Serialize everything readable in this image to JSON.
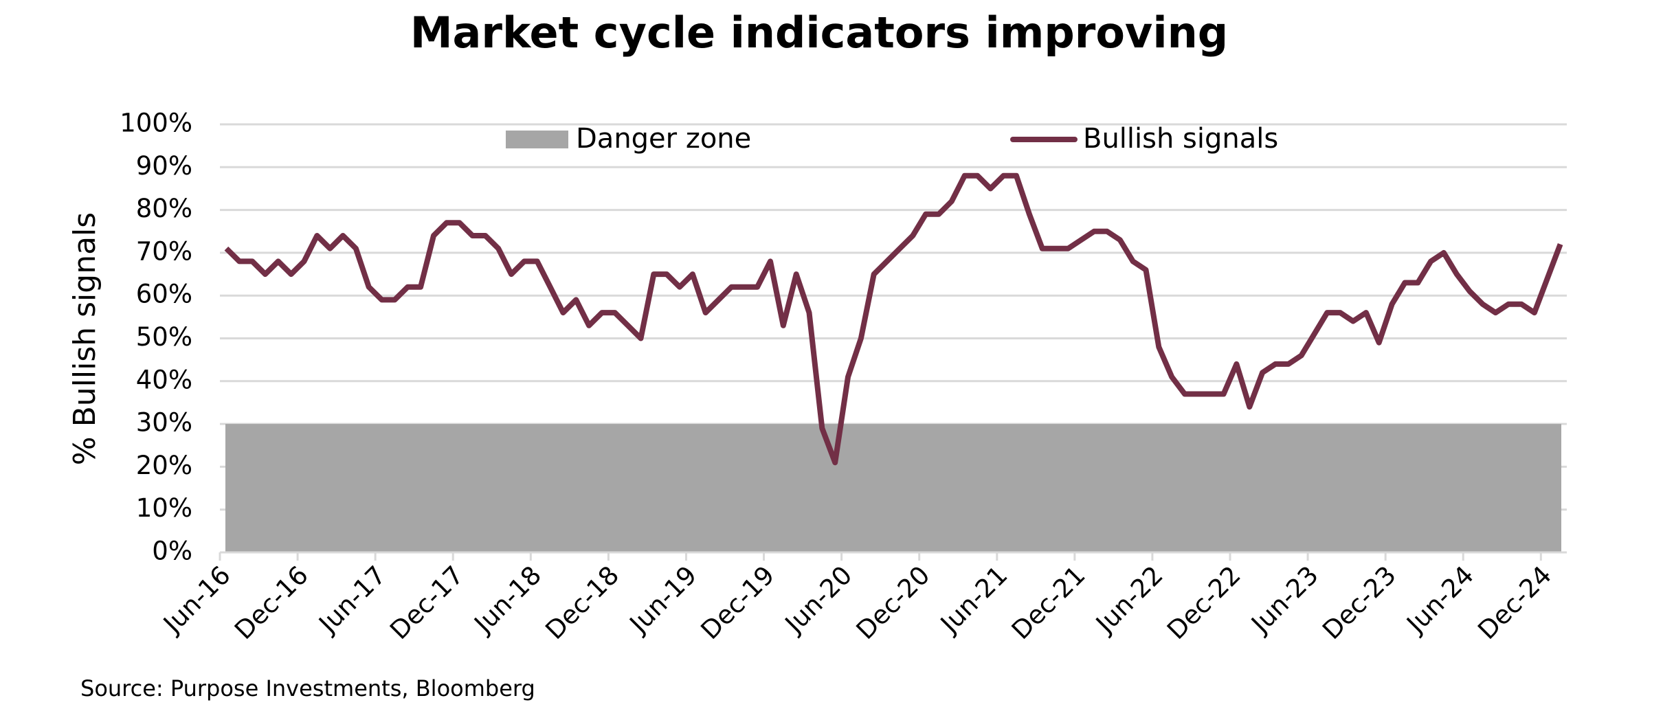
{
  "chart_data": {
    "type": "line",
    "title": "Market cycle indicators improving",
    "y_label": "% Bullish signals",
    "source": "Source: Purpose Investments, Bloomberg",
    "categories": [
      "Jun-16",
      null,
      null,
      null,
      null,
      null,
      "Dec-16",
      null,
      null,
      null,
      null,
      null,
      "Jun-17",
      null,
      null,
      null,
      null,
      null,
      "Dec-17",
      null,
      null,
      null,
      null,
      null,
      "Jun-18",
      null,
      null,
      null,
      null,
      null,
      "Dec-18",
      null,
      null,
      null,
      null,
      null,
      "Jun-19",
      null,
      null,
      null,
      null,
      null,
      "Dec-19",
      null,
      null,
      null,
      null,
      null,
      "Jun-20",
      null,
      null,
      null,
      null,
      null,
      "Dec-20",
      null,
      null,
      null,
      null,
      null,
      "Jun-21",
      null,
      null,
      null,
      null,
      null,
      "Dec-21",
      null,
      null,
      null,
      null,
      null,
      "Jun-22",
      null,
      null,
      null,
      null,
      null,
      "Dec-22",
      null,
      null,
      null,
      null,
      null,
      "Jun-23",
      null,
      null,
      null,
      null,
      null,
      "Dec-23",
      null,
      null,
      null,
      null,
      null,
      "Jun-24",
      null,
      null,
      null,
      null,
      null,
      "Dec-24",
      null
    ],
    "series": [
      {
        "name": "Bullish signals",
        "color": "#722f46",
        "values": [
          71,
          68,
          68,
          65,
          68,
          65,
          68,
          74,
          71,
          74,
          71,
          62,
          59,
          59,
          62,
          62,
          74,
          77,
          77,
          74,
          74,
          71,
          65,
          68,
          68,
          62,
          56,
          59,
          53,
          56,
          56,
          53,
          50,
          65,
          65,
          62,
          65,
          56,
          59,
          62,
          62,
          62,
          68,
          53,
          65,
          56,
          29,
          21,
          41,
          50,
          65,
          68,
          71,
          74,
          79,
          79,
          82,
          88,
          88,
          85,
          88,
          88,
          79,
          71,
          71,
          71,
          73,
          75,
          75,
          73,
          68,
          66,
          48,
          41,
          37,
          37,
          37,
          37,
          44,
          34,
          42,
          44,
          44,
          46,
          51,
          56,
          56,
          54,
          56,
          49,
          58,
          63,
          63,
          68,
          70,
          65,
          61,
          58,
          56,
          58,
          58,
          56,
          64,
          72
        ]
      }
    ],
    "danger_zone": {
      "name": "Danger zone",
      "color": "#a6a6a6",
      "range": [
        0,
        30
      ]
    },
    "ylim": [
      0,
      100
    ],
    "yticks": [
      {
        "value": 0,
        "label": "0%"
      },
      {
        "value": 10,
        "label": "10%"
      },
      {
        "value": 20,
        "label": "20%"
      },
      {
        "value": 30,
        "label": "30%"
      },
      {
        "value": 40,
        "label": "40%"
      },
      {
        "value": 50,
        "label": "50%"
      },
      {
        "value": 60,
        "label": "60%"
      },
      {
        "value": 70,
        "label": "70%"
      },
      {
        "value": 80,
        "label": "80%"
      },
      {
        "value": 90,
        "label": "90%"
      },
      {
        "value": 100,
        "label": "100%"
      }
    ],
    "grid": true
  }
}
